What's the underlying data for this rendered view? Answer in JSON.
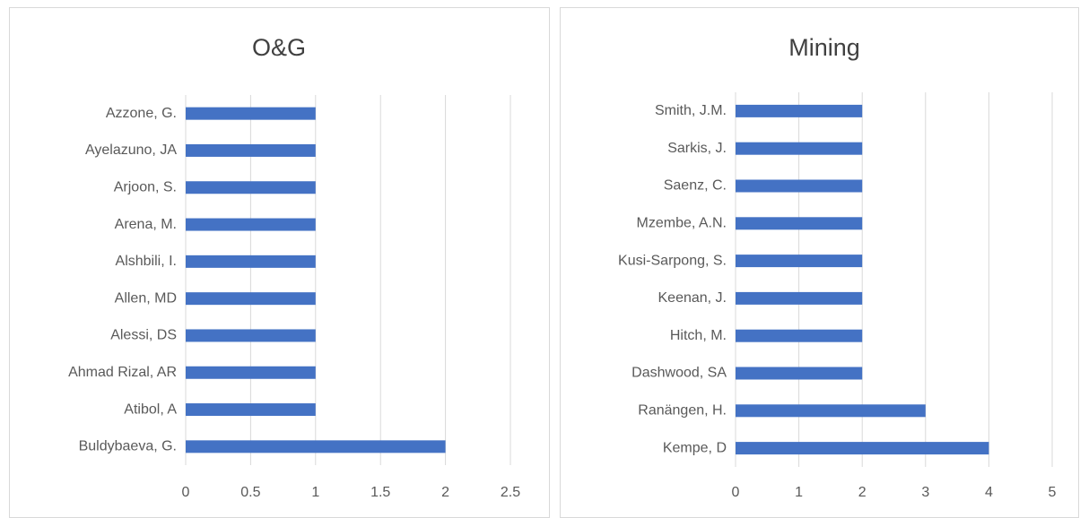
{
  "chart_data": [
    {
      "type": "bar",
      "orientation": "horizontal",
      "title": "O&G",
      "categories": [
        "Azzone, G.",
        "Ayelazuno, JA",
        "Arjoon, S.",
        "Arena, M.",
        "Alshbili, I.",
        "Allen, MD",
        "Alessi, DS",
        "Ahmad Rizal, AR",
        "Atibol, A",
        "Buldybaeva, G."
      ],
      "values": [
        1,
        1,
        1,
        1,
        1,
        1,
        1,
        1,
        1,
        2
      ],
      "color": "#4472c4",
      "xlim": [
        0,
        2.5
      ],
      "xticks": [
        0,
        0.5,
        1,
        1.5,
        2,
        2.5
      ],
      "grid": true
    },
    {
      "type": "bar",
      "orientation": "horizontal",
      "title": "Mining",
      "categories": [
        "Smith, J.M.",
        "Sarkis, J.",
        "Saenz, C.",
        "Mzembe, A.N.",
        "Kusi-Sarpong, S.",
        "Keenan, J.",
        "Hitch, M.",
        "Dashwood, SA",
        "Ranängen, H.",
        "Kempe, D"
      ],
      "values": [
        2,
        2,
        2,
        2,
        2,
        2,
        2,
        2,
        3,
        4
      ],
      "color": "#4472c4",
      "xlim": [
        0,
        5
      ],
      "xticks": [
        0,
        1,
        2,
        3,
        4,
        5
      ],
      "grid": true
    }
  ]
}
